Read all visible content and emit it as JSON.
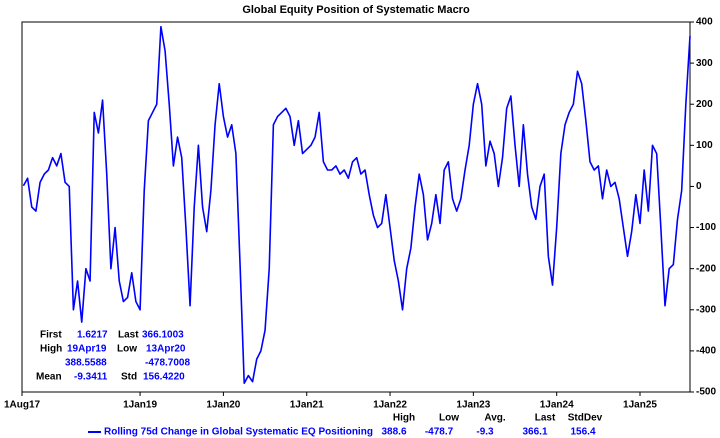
{
  "chart_data": {
    "type": "line",
    "title": "Global Equity Position of Systematic Macro",
    "x": [
      2017.6,
      2017.65,
      2017.7,
      2017.75,
      2017.8,
      2017.85,
      2017.9,
      2017.95,
      2018.0,
      2018.05,
      2018.1,
      2018.15,
      2018.2,
      2018.25,
      2018.3,
      2018.35,
      2018.4,
      2018.45,
      2018.5,
      2018.55,
      2018.6,
      2018.65,
      2018.7,
      2018.75,
      2018.8,
      2018.85,
      2018.9,
      2018.95,
      2019.0,
      2019.05,
      2019.1,
      2019.15,
      2019.2,
      2019.25,
      2019.3,
      2019.35,
      2019.4,
      2019.45,
      2019.5,
      2019.55,
      2019.6,
      2019.65,
      2019.7,
      2019.75,
      2019.8,
      2019.85,
      2019.9,
      2019.95,
      2020.0,
      2020.05,
      2020.1,
      2020.15,
      2020.2,
      2020.25,
      2020.3,
      2020.35,
      2020.4,
      2020.45,
      2020.5,
      2020.55,
      2020.6,
      2020.65,
      2020.7,
      2020.75,
      2020.8,
      2020.85,
      2020.9,
      2020.95,
      2021.0,
      2021.05,
      2021.1,
      2021.15,
      2021.2,
      2021.25,
      2021.3,
      2021.35,
      2021.4,
      2021.45,
      2021.5,
      2021.55,
      2021.6,
      2021.65,
      2021.7,
      2021.75,
      2021.8,
      2021.85,
      2021.9,
      2021.95,
      2022.0,
      2022.05,
      2022.1,
      2022.15,
      2022.2,
      2022.25,
      2022.3,
      2022.35,
      2022.4,
      2022.45,
      2022.5,
      2022.55,
      2022.6,
      2022.65,
      2022.7,
      2022.75,
      2022.8,
      2022.85,
      2022.9,
      2022.95,
      2023.0,
      2023.05,
      2023.1,
      2023.15,
      2023.2,
      2023.25,
      2023.3,
      2023.35,
      2023.4,
      2023.45,
      2023.5,
      2023.55,
      2023.6,
      2023.65,
      2023.7,
      2023.75,
      2023.8,
      2023.85,
      2023.9,
      2023.95,
      2024.0,
      2024.05,
      2024.1,
      2024.15,
      2024.2,
      2024.25,
      2024.3,
      2024.35,
      2024.4,
      2024.45,
      2024.5,
      2024.55,
      2024.6,
      2024.65,
      2024.7,
      2024.75,
      2024.8,
      2024.85,
      2024.9,
      2024.95,
      2025.0,
      2025.05,
      2025.1,
      2025.15,
      2025.2,
      2025.25,
      2025.3,
      2025.35,
      2025.4,
      2025.45,
      2025.5,
      2025.55,
      2025.6
    ],
    "series": [
      {
        "name": "Rolling 75d Change in Global Systematic EQ Positioning",
        "color": "#0000ff",
        "values": [
          1.6,
          20,
          -50,
          -60,
          10,
          30,
          40,
          70,
          50,
          80,
          10,
          0,
          -300,
          -230,
          -330,
          -200,
          -230,
          180,
          130,
          210,
          30,
          -200,
          -100,
          -230,
          -280,
          -270,
          -210,
          -280,
          -300,
          -10,
          160,
          180,
          200,
          388.6,
          330,
          200,
          50,
          120,
          70,
          -100,
          -290,
          -50,
          100,
          -50,
          -110,
          -10,
          150,
          250,
          170,
          120,
          150,
          80,
          -190,
          -478.7,
          -460,
          -475,
          -420,
          -400,
          -350,
          -200,
          150,
          170,
          180,
          190,
          170,
          100,
          160,
          80,
          90,
          100,
          120,
          180,
          60,
          40,
          40,
          50,
          30,
          40,
          20,
          60,
          70,
          30,
          40,
          -20,
          -70,
          -100,
          -90,
          -20,
          -100,
          -180,
          -230,
          -300,
          -200,
          -150,
          -50,
          30,
          -20,
          -130,
          -90,
          -20,
          -90,
          40,
          60,
          -30,
          -60,
          -30,
          40,
          100,
          200,
          250,
          200,
          50,
          110,
          80,
          0,
          70,
          190,
          220,
          100,
          0,
          150,
          30,
          -50,
          -80,
          0,
          30,
          -170,
          -240,
          -100,
          80,
          150,
          180,
          200,
          280,
          250,
          160,
          60,
          40,
          50,
          -30,
          40,
          0,
          10,
          -30,
          -100,
          -170,
          -110,
          -20,
          -90,
          40,
          -60,
          100,
          80,
          -100,
          -290,
          -200,
          -190,
          -80,
          -10,
          200,
          366.1
        ]
      }
    ],
    "xlim": [
      2017.583,
      2025.6
    ],
    "xticks": [
      {
        "value": 2017.583,
        "label": "1Aug17"
      },
      {
        "value": 2019,
        "label": "1Jan19"
      },
      {
        "value": 2020,
        "label": "1Jan20"
      },
      {
        "value": 2021,
        "label": "1Jan21"
      },
      {
        "value": 2022,
        "label": "1Jan22"
      },
      {
        "value": 2023,
        "label": "1Jan23"
      },
      {
        "value": 2024,
        "label": "1Jan24"
      },
      {
        "value": 2025,
        "label": "1Jan25"
      }
    ],
    "ylim": [
      -500,
      400
    ],
    "yticks": [
      -500,
      -400,
      -300,
      -200,
      -100,
      0,
      100,
      200,
      300,
      400
    ],
    "grid": false,
    "stats": {
      "first": {
        "label": "First",
        "value": "1.6217"
      },
      "last": {
        "label": "Last",
        "value": "366.1003"
      },
      "high": {
        "label": "High",
        "date": "19Apr19",
        "value": "388.5588"
      },
      "low": {
        "label": "Low",
        "date": "13Apr20",
        "value": "-478.7008"
      },
      "mean": {
        "label": "Mean",
        "value": "-9.3411"
      },
      "std": {
        "label": "Std",
        "value": "156.4220"
      }
    },
    "summary": {
      "headers": [
        "High",
        "Low",
        "Avg.",
        "Last",
        "StdDev"
      ],
      "values": [
        "388.6",
        "-478.7",
        "-9.3",
        "366.1",
        "156.4"
      ]
    }
  }
}
